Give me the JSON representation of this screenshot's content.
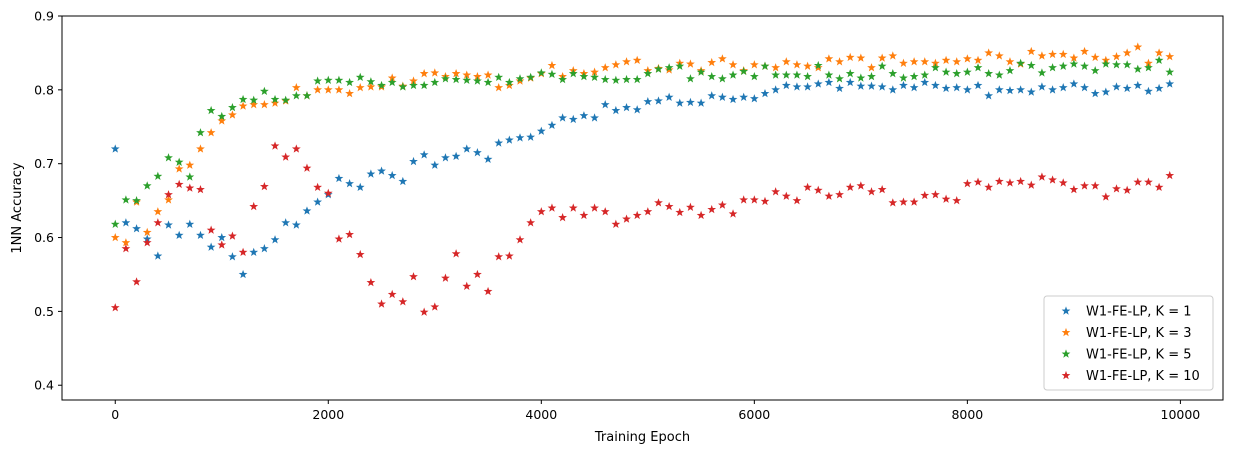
{
  "chart_data": {
    "type": "scatter",
    "xlabel": "Training Epoch",
    "ylabel": "1NN Accuracy",
    "xlim": [
      -500,
      10400
    ],
    "ylim": [
      0.38,
      0.9
    ],
    "x_ticks": [
      0,
      2000,
      4000,
      6000,
      8000,
      10000
    ],
    "y_ticks": [
      0.4,
      0.5,
      0.6,
      0.7,
      0.8,
      0.9
    ],
    "x_tick_labels": [
      "0",
      "2000",
      "4000",
      "6000",
      "8000",
      "10000"
    ],
    "y_tick_labels": [
      "0.4",
      "0.5",
      "0.6",
      "0.7",
      "0.8",
      "0.9"
    ],
    "grid": false,
    "legend_position": "lower-right",
    "marker": "star",
    "x": [
      0,
      100,
      200,
      300,
      400,
      500,
      600,
      700,
      800,
      900,
      1000,
      1100,
      1200,
      1300,
      1400,
      1500,
      1600,
      1700,
      1800,
      1900,
      2000,
      2100,
      2200,
      2300,
      2400,
      2500,
      2600,
      2700,
      2800,
      2900,
      3000,
      3100,
      3200,
      3300,
      3400,
      3500,
      3600,
      3700,
      3800,
      3900,
      4000,
      4100,
      4200,
      4300,
      4400,
      4500,
      4600,
      4700,
      4800,
      4900,
      5000,
      5100,
      5200,
      5300,
      5400,
      5500,
      5600,
      5700,
      5800,
      5900,
      6000,
      6100,
      6200,
      6300,
      6400,
      6500,
      6600,
      6700,
      6800,
      6900,
      7000,
      7100,
      7200,
      7300,
      7400,
      7500,
      7600,
      7700,
      7800,
      7900,
      8000,
      8100,
      8200,
      8300,
      8400,
      8500,
      8600,
      8700,
      8800,
      8900,
      9000,
      9100,
      9200,
      9300,
      9400,
      9500,
      9600,
      9700,
      9800,
      9900
    ],
    "series": [
      {
        "name": "W1-FE-LP, K = 1",
        "color": "#1f77b4",
        "values": [
          0.72,
          0.62,
          0.612,
          0.598,
          0.575,
          0.617,
          0.603,
          0.618,
          0.603,
          0.587,
          0.6,
          0.574,
          0.55,
          0.58,
          0.585,
          0.597,
          0.62,
          0.617,
          0.636,
          0.648,
          0.658,
          0.68,
          0.673,
          0.668,
          0.686,
          0.69,
          0.684,
          0.676,
          0.703,
          0.712,
          0.698,
          0.708,
          0.71,
          0.72,
          0.715,
          0.706,
          0.728,
          0.732,
          0.735,
          0.736,
          0.744,
          0.752,
          0.762,
          0.76,
          0.765,
          0.762,
          0.78,
          0.772,
          0.776,
          0.773,
          0.784,
          0.785,
          0.79,
          0.782,
          0.783,
          0.782,
          0.792,
          0.79,
          0.787,
          0.79,
          0.788,
          0.795,
          0.8,
          0.806,
          0.804,
          0.804,
          0.808,
          0.81,
          0.802,
          0.81,
          0.805,
          0.805,
          0.804,
          0.8,
          0.806,
          0.803,
          0.81,
          0.806,
          0.802,
          0.803,
          0.8,
          0.806,
          0.792,
          0.8,
          0.799,
          0.8,
          0.797,
          0.804,
          0.8,
          0.803,
          0.808,
          0.803,
          0.795,
          0.797,
          0.804,
          0.802,
          0.806,
          0.798,
          0.802,
          0.808
        ]
      },
      {
        "name": "W1-FE-LP, K = 3",
        "color": "#ff7f0e",
        "values": [
          0.6,
          0.593,
          0.648,
          0.607,
          0.635,
          0.651,
          0.693,
          0.698,
          0.72,
          0.742,
          0.758,
          0.766,
          0.778,
          0.78,
          0.78,
          0.782,
          0.785,
          0.803,
          0.792,
          0.8,
          0.8,
          0.8,
          0.795,
          0.803,
          0.804,
          0.804,
          0.816,
          0.805,
          0.812,
          0.822,
          0.823,
          0.818,
          0.822,
          0.82,
          0.818,
          0.82,
          0.803,
          0.806,
          0.812,
          0.816,
          0.822,
          0.833,
          0.818,
          0.826,
          0.822,
          0.824,
          0.83,
          0.834,
          0.838,
          0.84,
          0.826,
          0.829,
          0.827,
          0.836,
          0.835,
          0.826,
          0.837,
          0.842,
          0.834,
          0.826,
          0.834,
          0.832,
          0.83,
          0.838,
          0.834,
          0.832,
          0.83,
          0.842,
          0.838,
          0.844,
          0.843,
          0.83,
          0.843,
          0.846,
          0.836,
          0.838,
          0.838,
          0.836,
          0.84,
          0.838,
          0.842,
          0.84,
          0.85,
          0.846,
          0.838,
          0.835,
          0.852,
          0.846,
          0.848,
          0.848,
          0.843,
          0.852,
          0.844,
          0.84,
          0.845,
          0.85,
          0.858,
          0.836,
          0.85,
          0.845
        ]
      },
      {
        "name": "W1-FE-LP, K = 5",
        "color": "#2ca02c",
        "values": [
          0.618,
          0.651,
          0.65,
          0.67,
          0.683,
          0.708,
          0.702,
          0.682,
          0.742,
          0.772,
          0.764,
          0.776,
          0.787,
          0.786,
          0.798,
          0.787,
          0.786,
          0.792,
          0.792,
          0.812,
          0.813,
          0.813,
          0.81,
          0.817,
          0.811,
          0.806,
          0.81,
          0.804,
          0.806,
          0.806,
          0.81,
          0.815,
          0.814,
          0.813,
          0.812,
          0.81,
          0.817,
          0.81,
          0.815,
          0.817,
          0.823,
          0.821,
          0.814,
          0.822,
          0.818,
          0.817,
          0.814,
          0.813,
          0.814,
          0.814,
          0.822,
          0.828,
          0.83,
          0.832,
          0.815,
          0.824,
          0.818,
          0.815,
          0.82,
          0.825,
          0.818,
          0.832,
          0.82,
          0.82,
          0.82,
          0.818,
          0.833,
          0.82,
          0.815,
          0.822,
          0.816,
          0.818,
          0.832,
          0.822,
          0.816,
          0.818,
          0.82,
          0.83,
          0.824,
          0.822,
          0.824,
          0.83,
          0.822,
          0.82,
          0.826,
          0.836,
          0.833,
          0.823,
          0.83,
          0.832,
          0.835,
          0.832,
          0.826,
          0.835,
          0.834,
          0.834,
          0.828,
          0.83,
          0.84,
          0.824
        ]
      },
      {
        "name": "W1-FE-LP, K = 10",
        "color": "#d62728",
        "values": [
          0.505,
          0.585,
          0.54,
          0.593,
          0.62,
          0.658,
          0.672,
          0.667,
          0.665,
          0.61,
          0.59,
          0.602,
          0.58,
          0.642,
          0.669,
          0.724,
          0.709,
          0.72,
          0.694,
          0.668,
          0.66,
          0.598,
          0.604,
          0.577,
          0.539,
          0.51,
          0.523,
          0.513,
          0.547,
          0.499,
          0.506,
          0.545,
          0.578,
          0.534,
          0.55,
          0.527,
          0.574,
          0.575,
          0.597,
          0.62,
          0.635,
          0.64,
          0.627,
          0.64,
          0.63,
          0.64,
          0.635,
          0.618,
          0.625,
          0.63,
          0.635,
          0.647,
          0.642,
          0.634,
          0.641,
          0.63,
          0.638,
          0.644,
          0.632,
          0.651,
          0.651,
          0.649,
          0.662,
          0.656,
          0.65,
          0.668,
          0.664,
          0.656,
          0.658,
          0.668,
          0.67,
          0.662,
          0.665,
          0.647,
          0.648,
          0.648,
          0.657,
          0.658,
          0.652,
          0.65,
          0.673,
          0.675,
          0.668,
          0.676,
          0.674,
          0.676,
          0.671,
          0.682,
          0.678,
          0.674,
          0.665,
          0.67,
          0.67,
          0.655,
          0.666,
          0.664,
          0.675,
          0.675,
          0.668,
          0.684
        ]
      }
    ]
  }
}
